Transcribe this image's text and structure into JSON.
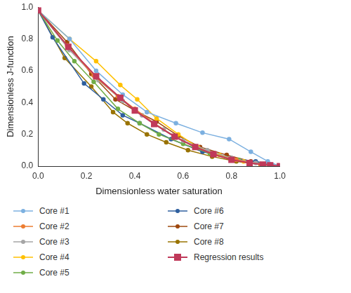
{
  "chart_data": {
    "type": "line",
    "x_label": "Dimensionless water saturation",
    "y_label": "Dimensionless J-function",
    "xlim": [
      0,
      1
    ],
    "ylim": [
      0,
      1
    ],
    "xticks": [
      {
        "value": 0,
        "label": "0.0"
      },
      0.2,
      0.4,
      0.6,
      0.8,
      {
        "value": 1,
        "label": "1.0"
      }
    ],
    "yticks": [
      {
        "value": 0,
        "label": "0.0"
      },
      0.2,
      0.4,
      0.6,
      0.8,
      {
        "value": 1,
        "label": "1.0"
      }
    ],
    "grid": false,
    "legend": "bottom",
    "series": [
      {
        "name": "Core #1",
        "color": "#7cb0e0",
        "marker": "circle",
        "x": [
          0,
          0.13,
          0.24,
          0.35,
          0.45,
          0.57,
          0.68,
          0.79,
          0.88,
          0.95,
          1
        ],
        "values": [
          0.98,
          0.8,
          0.6,
          0.45,
          0.34,
          0.27,
          0.21,
          0.17,
          0.09,
          0.03,
          0
        ]
      },
      {
        "name": "Core #2",
        "color": "#ed7d31",
        "marker": "circle",
        "x": [
          0,
          0.12,
          0.23,
          0.33,
          0.4,
          0.48,
          0.56,
          0.65,
          0.73,
          0.82,
          0.92,
          1
        ],
        "values": [
          0.98,
          0.76,
          0.57,
          0.44,
          0.36,
          0.27,
          0.19,
          0.12,
          0.07,
          0.04,
          0.01,
          0
        ]
      },
      {
        "name": "Core #3",
        "color": "#a5a5a5",
        "marker": "circle",
        "x": [
          0,
          0.13,
          0.25,
          0.35,
          0.43,
          0.52,
          0.6,
          0.7,
          0.8,
          0.9,
          1
        ],
        "values": [
          0.98,
          0.73,
          0.54,
          0.41,
          0.32,
          0.23,
          0.16,
          0.1,
          0.05,
          0.02,
          0
        ]
      },
      {
        "name": "Core #4",
        "color": "#ffc000",
        "marker": "circle",
        "x": [
          0,
          0.13,
          0.24,
          0.34,
          0.41,
          0.49,
          0.58,
          0.66,
          0.75,
          0.85,
          1
        ],
        "values": [
          0.98,
          0.8,
          0.66,
          0.51,
          0.42,
          0.3,
          0.2,
          0.12,
          0.07,
          0.03,
          0
        ]
      },
      {
        "name": "Core #5",
        "color": "#70ad47",
        "marker": "circle",
        "x": [
          0,
          0.08,
          0.15,
          0.23,
          0.33,
          0.42,
          0.5,
          0.6,
          0.71,
          0.83,
          0.93,
          1
        ],
        "values": [
          0.98,
          0.79,
          0.66,
          0.53,
          0.36,
          0.27,
          0.2,
          0.14,
          0.08,
          0.04,
          0.01,
          0
        ]
      },
      {
        "name": "Core #6",
        "color": "#2e5f9e",
        "marker": "circle",
        "x": [
          0,
          0.06,
          0.19,
          0.27,
          0.35,
          0.42,
          0.55,
          0.68,
          0.8,
          0.9,
          1
        ],
        "values": [
          0.98,
          0.81,
          0.52,
          0.42,
          0.32,
          0.27,
          0.17,
          0.09,
          0.05,
          0.03,
          0
        ]
      },
      {
        "name": "Core #7",
        "color": "#9e480e",
        "marker": "circle",
        "x": [
          0,
          0.12,
          0.22,
          0.32,
          0.4,
          0.49,
          0.58,
          0.67,
          0.78,
          0.88,
          1
        ],
        "values": [
          0.98,
          0.78,
          0.58,
          0.42,
          0.35,
          0.28,
          0.19,
          0.12,
          0.07,
          0.03,
          0
        ]
      },
      {
        "name": "Core #8",
        "color": "#997300",
        "marker": "circle",
        "x": [
          0,
          0.11,
          0.22,
          0.31,
          0.37,
          0.45,
          0.53,
          0.62,
          0.72,
          0.82,
          0.92,
          1
        ],
        "values": [
          0.98,
          0.68,
          0.5,
          0.34,
          0.27,
          0.2,
          0.15,
          0.1,
          0.06,
          0.03,
          0.01,
          0
        ]
      },
      {
        "name": "Regression results",
        "color": "#c0395a",
        "marker": "square",
        "x": [
          0,
          0.125,
          0.24,
          0.34,
          0.4,
          0.48,
          0.565,
          0.65,
          0.725,
          0.8,
          0.875,
          0.93,
          0.96,
          1
        ],
        "values": [
          0.98,
          0.75,
          0.565,
          0.43,
          0.35,
          0.265,
          0.185,
          0.12,
          0.075,
          0.04,
          0.02,
          0.01,
          0.005,
          0
        ]
      }
    ]
  }
}
